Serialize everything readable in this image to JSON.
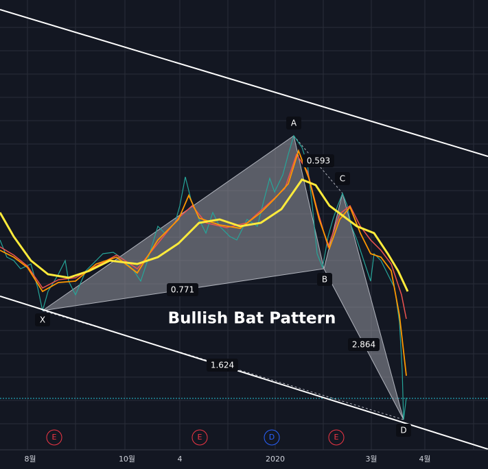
{
  "pattern": {
    "title": "Bullish Bat Pattern",
    "points": [
      "X",
      "A",
      "B",
      "C",
      "D"
    ],
    "ratios": [
      "0.593",
      "0.771",
      "2.864",
      "1.624"
    ]
  },
  "x_axis": {
    "labels": [
      "8월",
      "10월",
      "4",
      "2020",
      "3월",
      "4월"
    ]
  },
  "events": [
    "E",
    "E",
    "D",
    "E"
  ]
}
